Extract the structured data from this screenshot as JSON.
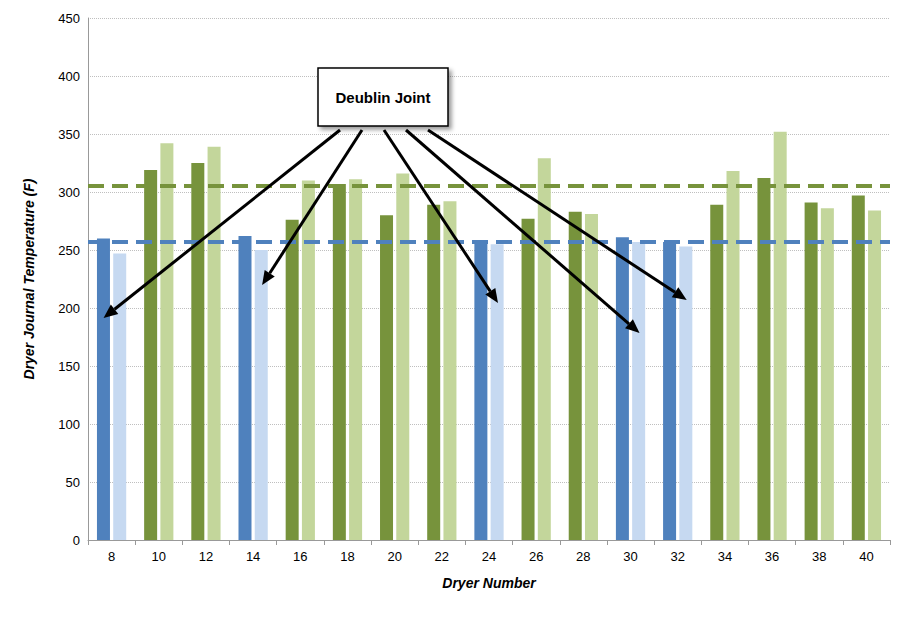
{
  "chart_data": {
    "type": "bar",
    "x_label": "Dryer Number",
    "y_label": "Dryer Journal Temperature (F)",
    "categories": [
      8,
      10,
      12,
      14,
      16,
      18,
      20,
      22,
      24,
      26,
      28,
      30,
      32,
      34,
      36,
      38,
      40
    ],
    "series": [
      {
        "values": [
          260,
          319,
          325,
          262,
          276,
          307,
          280,
          289,
          256,
          277,
          283,
          261,
          257,
          289,
          312,
          291,
          297
        ],
        "colors": [
          "#4f81bd",
          "#77933c",
          "#77933c",
          "#4f81bd",
          "#77933c",
          "#77933c",
          "#77933c",
          "#77933c",
          "#4f81bd",
          "#77933c",
          "#77933c",
          "#4f81bd",
          "#4f81bd",
          "#77933c",
          "#77933c",
          "#77933c",
          "#77933c"
        ]
      },
      {
        "values": [
          247,
          342,
          339,
          250,
          310,
          311,
          316,
          292,
          255,
          329,
          281,
          257,
          253,
          318,
          352,
          286,
          284
        ],
        "colors": [
          "#c6d9f1",
          "#c3d69b",
          "#c3d69b",
          "#c6d9f1",
          "#c3d69b",
          "#c3d69b",
          "#c3d69b",
          "#c3d69b",
          "#c6d9f1",
          "#c3d69b",
          "#c3d69b",
          "#c6d9f1",
          "#c6d9f1",
          "#c3d69b",
          "#c3d69b",
          "#c3d69b",
          "#c3d69b"
        ]
      }
    ],
    "reference_lines": [
      {
        "value": 305,
        "color": "#77933c",
        "line_style": "dashed"
      },
      {
        "value": 257,
        "color": "#4f81bd",
        "line_style": "dashed"
      }
    ],
    "annotations": [
      {
        "text": "Deublin Joint",
        "targets": [
          8,
          14,
          24,
          30,
          32
        ]
      }
    ],
    "ylim": [
      0,
      450
    ],
    "yticks": [
      0,
      50,
      100,
      150,
      200,
      250,
      300,
      350,
      400,
      450
    ],
    "grid": true
  }
}
